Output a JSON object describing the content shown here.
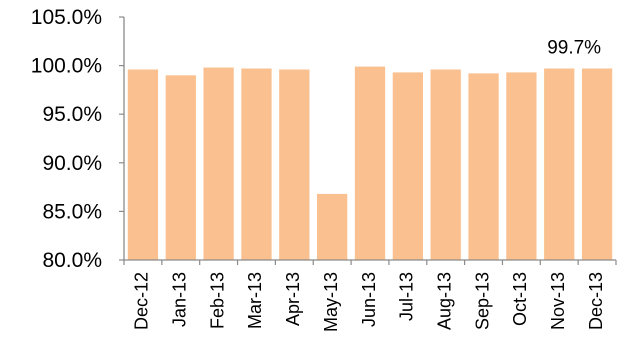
{
  "chart_data": {
    "type": "bar",
    "categories": [
      "Dec-12",
      "Jan-13",
      "Feb-13",
      "Mar-13",
      "Apr-13",
      "May-13",
      "Jun-13",
      "Jul-13",
      "Aug-13",
      "Sep-13",
      "Oct-13",
      "Nov-13",
      "Dec-13"
    ],
    "values": [
      99.6,
      99.0,
      99.8,
      99.7,
      99.6,
      86.8,
      99.9,
      99.3,
      99.6,
      99.2,
      99.3,
      99.7,
      99.7
    ],
    "ylim": [
      80,
      105
    ],
    "yticks": [
      80,
      85,
      90,
      95,
      100,
      105
    ],
    "ytick_labels": [
      "80.0%",
      "85.0%",
      "90.0%",
      "95.0%",
      "100.0%",
      "105.0%"
    ],
    "data_labels": [
      {
        "category_index": 12,
        "text": "99.7%"
      }
    ],
    "bar_color": "#fac08f",
    "grid": false,
    "legend": "none"
  }
}
